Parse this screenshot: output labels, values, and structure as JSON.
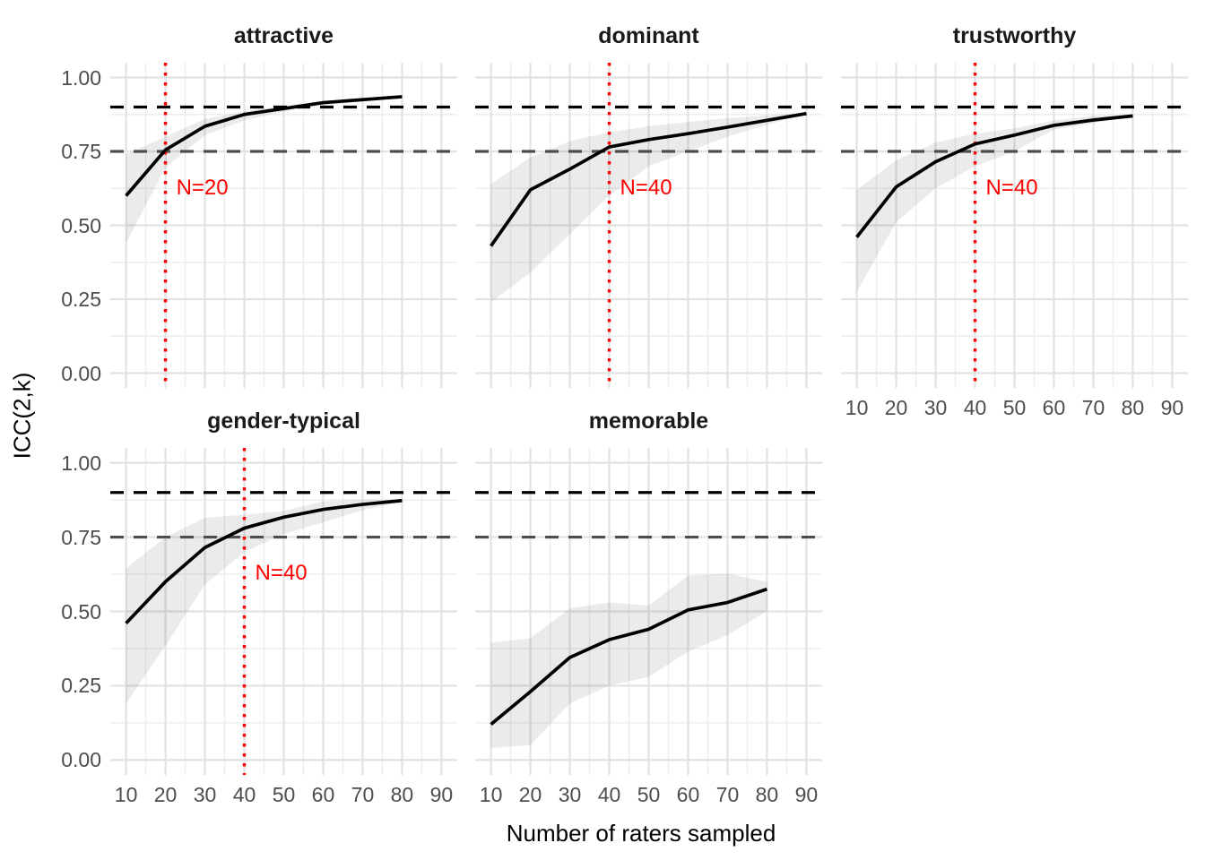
{
  "figure": {
    "y_axis_title": "ICC(2,k)",
    "x_axis_title": "Number of raters sampled",
    "x_ticks": {
      "values": [
        10,
        20,
        30,
        40,
        50,
        60,
        70,
        80,
        90
      ],
      "labels": [
        "10",
        "20",
        "30",
        "40",
        "50",
        "60",
        "70",
        "80",
        "90"
      ]
    },
    "y_ticks": {
      "values": [
        1.0,
        0.75,
        0.5,
        0.25,
        0.0
      ],
      "labels": [
        "1.00",
        "0.75",
        "0.50",
        "0.25",
        "0.00"
      ]
    },
    "colors": {
      "line": "#000000",
      "ribbon": "rgba(0,0,0,0.08)",
      "cutoff_high": "#000000",
      "cutoff_low": "#4d4d4d",
      "sample_vline": "#ff0000",
      "annotation": "#ff0000",
      "grid_major": "#e2e2e2",
      "grid_minor": "#ededed",
      "tick_label": "#4d4d4d",
      "panel_title": "#1a1a1a"
    }
  },
  "chart_data": {
    "type": "line",
    "description": "Faceted line chart (5 facets) of ICC(2,k) vs number of raters sampled, with gray confidence ribbons, dashed reliability cutoffs at 0.90 (black) and 0.75 (gray), and red dotted vertical lines marking required sample size N.",
    "xlabel": "Number of raters sampled",
    "ylabel": "ICC(2,k)",
    "xlim": [
      6,
      94
    ],
    "ylim": [
      -0.05,
      1.05
    ],
    "grid": true,
    "cutoffs": {
      "high": 0.9,
      "low": 0.75
    },
    "panels": [
      {
        "title": "attractive",
        "x": [
          10,
          20,
          30,
          40,
          50,
          60,
          70,
          80
        ],
        "icc": [
          0.6,
          0.755,
          0.835,
          0.875,
          0.895,
          0.915,
          0.925,
          0.935
        ],
        "ribbon_upper": [
          0.74,
          0.8,
          0.86,
          0.885,
          0.905,
          0.92,
          0.93,
          0.937
        ],
        "ribbon_lower": [
          0.44,
          0.695,
          0.805,
          0.855,
          0.885,
          0.905,
          0.92,
          0.932
        ],
        "sample_size_line": 20,
        "annotation": {
          "text": "N=20",
          "x": 20,
          "y": 0.63
        },
        "show_x_labels": false
      },
      {
        "title": "dominant",
        "x": [
          10,
          20,
          30,
          40,
          50,
          60,
          70,
          80,
          90
        ],
        "icc": [
          0.43,
          0.62,
          0.69,
          0.765,
          0.79,
          0.81,
          0.832,
          0.855,
          0.878
        ],
        "ribbon_upper": [
          0.64,
          0.73,
          0.785,
          0.815,
          0.835,
          0.85,
          0.862,
          0.872,
          0.88
        ],
        "ribbon_lower": [
          0.24,
          0.34,
          0.47,
          0.6,
          0.7,
          0.75,
          0.8,
          0.84,
          0.875
        ],
        "sample_size_line": 40,
        "annotation": {
          "text": "N=40",
          "x": 40,
          "y": 0.63
        },
        "show_x_labels": false
      },
      {
        "title": "trustworthy",
        "x": [
          10,
          20,
          30,
          40,
          50,
          60,
          70,
          80
        ],
        "icc": [
          0.46,
          0.63,
          0.715,
          0.775,
          0.805,
          0.838,
          0.856,
          0.87
        ],
        "ribbon_upper": [
          0.62,
          0.72,
          0.78,
          0.81,
          0.828,
          0.854,
          0.87,
          0.873
        ],
        "ribbon_lower": [
          0.275,
          0.51,
          0.625,
          0.7,
          0.75,
          0.824,
          0.846,
          0.867
        ],
        "sample_size_line": 40,
        "annotation": {
          "text": "N=40",
          "x": 40,
          "y": 0.63
        },
        "show_x_labels": true
      },
      {
        "title": "gender-typical",
        "x": [
          10,
          20,
          30,
          40,
          50,
          60,
          70,
          80
        ],
        "icc": [
          0.46,
          0.6,
          0.715,
          0.78,
          0.817,
          0.843,
          0.86,
          0.873
        ],
        "ribbon_upper": [
          0.645,
          0.75,
          0.815,
          0.825,
          0.838,
          0.87,
          0.876,
          0.876
        ],
        "ribbon_lower": [
          0.19,
          0.385,
          0.59,
          0.7,
          0.76,
          0.8,
          0.84,
          0.87
        ],
        "sample_size_line": 40,
        "annotation": {
          "text": "N=40",
          "x": 40,
          "y": 0.63
        },
        "show_x_labels": true
      },
      {
        "title": "memorable",
        "x": [
          10,
          20,
          30,
          40,
          50,
          60,
          70,
          80
        ],
        "icc": [
          0.12,
          0.23,
          0.345,
          0.405,
          0.44,
          0.505,
          0.53,
          0.575
        ],
        "ribbon_upper": [
          0.395,
          0.41,
          0.51,
          0.53,
          0.52,
          0.62,
          0.627,
          0.6
        ],
        "ribbon_lower": [
          0.04,
          0.05,
          0.19,
          0.25,
          0.28,
          0.365,
          0.42,
          0.5
        ],
        "sample_size_line": null,
        "annotation": null,
        "show_x_labels": true
      }
    ]
  }
}
